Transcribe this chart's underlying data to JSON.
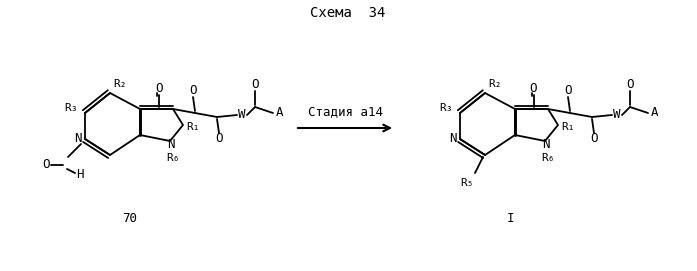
{
  "title": "Схема  34",
  "background_color": "#ffffff",
  "line_color": "#000000",
  "text_color": "#000000",
  "font_size": 9,
  "arrow_label": "Стадия а14",
  "compound_left_label": "70",
  "compound_right_label": "I",
  "lw": 1.3
}
